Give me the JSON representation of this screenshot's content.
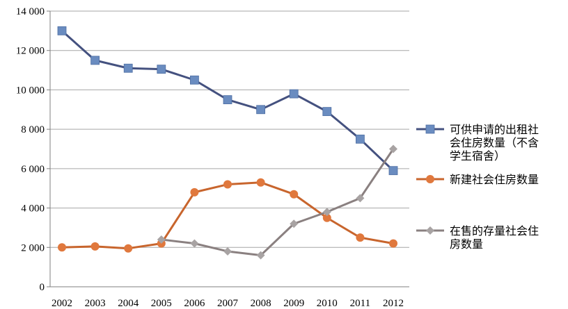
{
  "chart_data": {
    "type": "line",
    "title": "",
    "xlabel": "",
    "ylabel": "",
    "categories": [
      "2002",
      "2003",
      "2004",
      "2005",
      "2006",
      "2007",
      "2008",
      "2009",
      "2010",
      "2011",
      "2012"
    ],
    "ylim": [
      0,
      14000
    ],
    "yticks": [
      0,
      2000,
      4000,
      6000,
      8000,
      10000,
      12000,
      14000
    ],
    "ytick_labels": [
      "0",
      "2 000",
      "4 000",
      "6 000",
      "8 000",
      "10 000",
      "12 000",
      "14 000"
    ],
    "grid": "horizontal",
    "legend_position": "right",
    "series": [
      {
        "name": "可供申请的出租社会住房数量（不含学生宿舍）",
        "name_lines": [
          "可供申请的出租社",
          "会住房数量（不含",
          "学生宿舍）"
        ],
        "marker": "square",
        "color": "#44517f",
        "marker_color": "#6a8cc0",
        "x": [
          "2002",
          "2003",
          "2004",
          "2005",
          "2006",
          "2007",
          "2008",
          "2009",
          "2010",
          "2011",
          "2012"
        ],
        "values": [
          13000,
          11500,
          11100,
          11050,
          10500,
          9500,
          9000,
          9800,
          8900,
          7500,
          5900
        ]
      },
      {
        "name": "新建社会住房数量",
        "name_lines": [
          "新建社会住房数量"
        ],
        "marker": "circle",
        "color": "#c8652d",
        "marker_color": "#e0783d",
        "x": [
          "2002",
          "2003",
          "2004",
          "2005",
          "2006",
          "2007",
          "2008",
          "2009",
          "2010",
          "2011",
          "2012"
        ],
        "values": [
          2000,
          2050,
          1950,
          2200,
          4800,
          5200,
          5300,
          4700,
          3500,
          2500,
          2200
        ]
      },
      {
        "name": "在售的存量社会住房数量",
        "name_lines": [
          "在售的存量社会住",
          "房数量"
        ],
        "marker": "diamond",
        "color": "#8a8080",
        "marker_color": "#a8a3a3",
        "x": [
          "2005",
          "2006",
          "2007",
          "2008",
          "2009",
          "2010",
          "2011",
          "2012"
        ],
        "values": [
          2400,
          2200,
          1800,
          1600,
          3200,
          3800,
          4500,
          7000
        ]
      }
    ]
  }
}
